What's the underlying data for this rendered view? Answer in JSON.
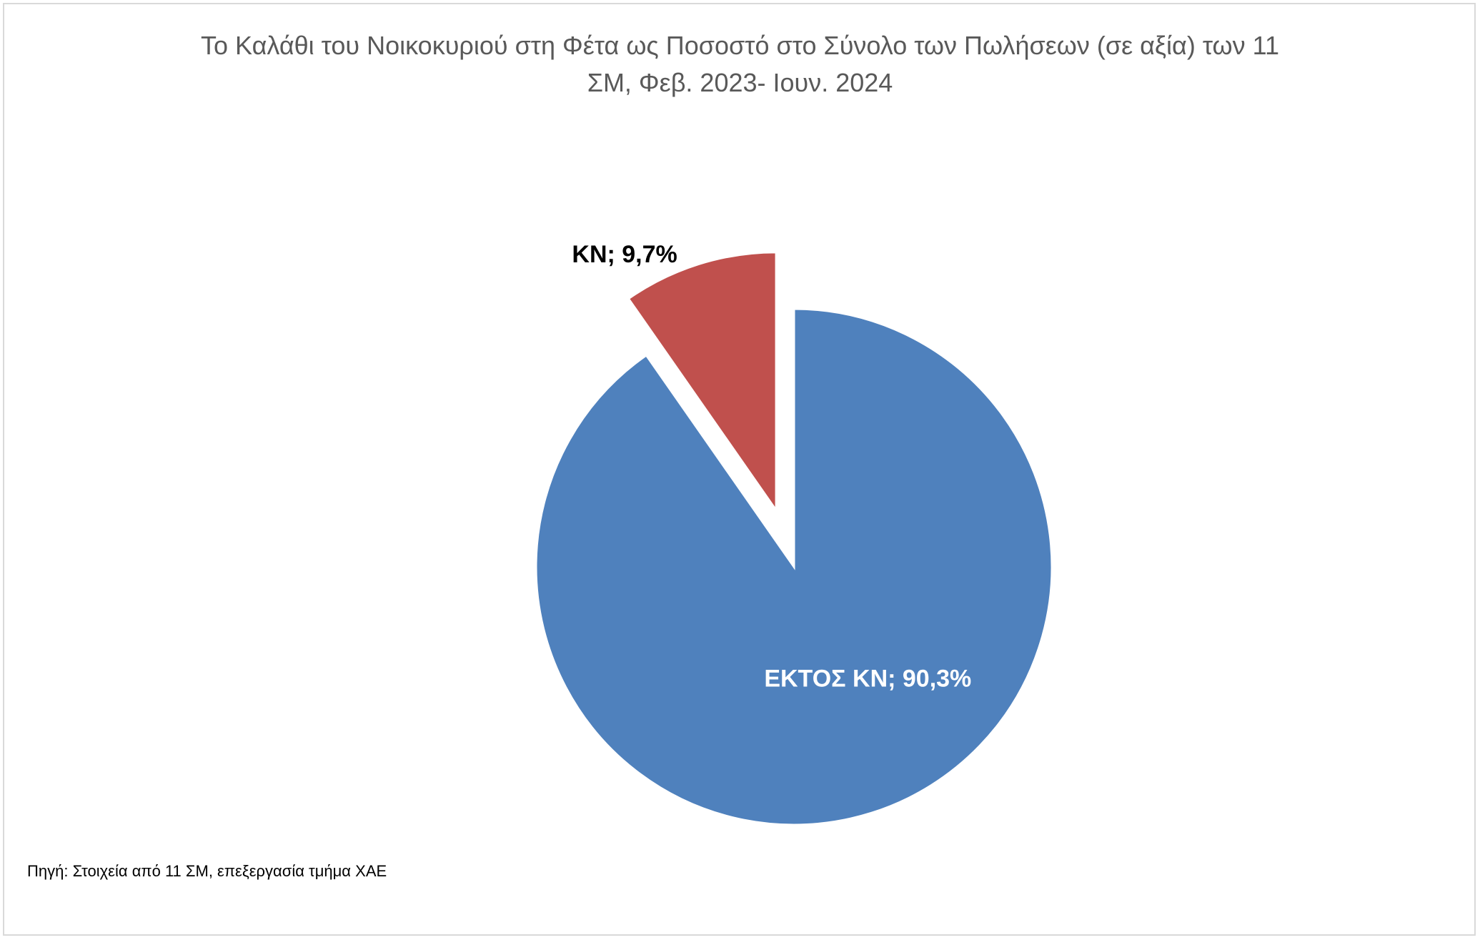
{
  "chart_data": {
    "type": "pie",
    "title_lines": [
      "Το Καλάθι του Νοικοκυριού στη Φέτα ως Ποσοστό στο Σύνολο των Πωλήσεων (σε αξία) των 11",
      "ΣΜ, Φεβ. 2023- Ιουν. 2024"
    ],
    "slices": [
      {
        "name": "ΕΚΤΟΣ ΚΝ",
        "value": 90.3,
        "label": "ΕΚΤΟΣ ΚΝ; 90,3%",
        "color": "#4F81BD",
        "label_color": "#ffffff",
        "exploded": false
      },
      {
        "name": "ΚΝ",
        "value": 9.7,
        "label": "ΚΝ; 9,7%",
        "color": "#C0504D",
        "label_color": "#000000",
        "exploded": true
      }
    ]
  },
  "source": "Πηγή: Στοιχεία από 11 ΣΜ, επεξεργασία τμήμα ΧΑΕ"
}
